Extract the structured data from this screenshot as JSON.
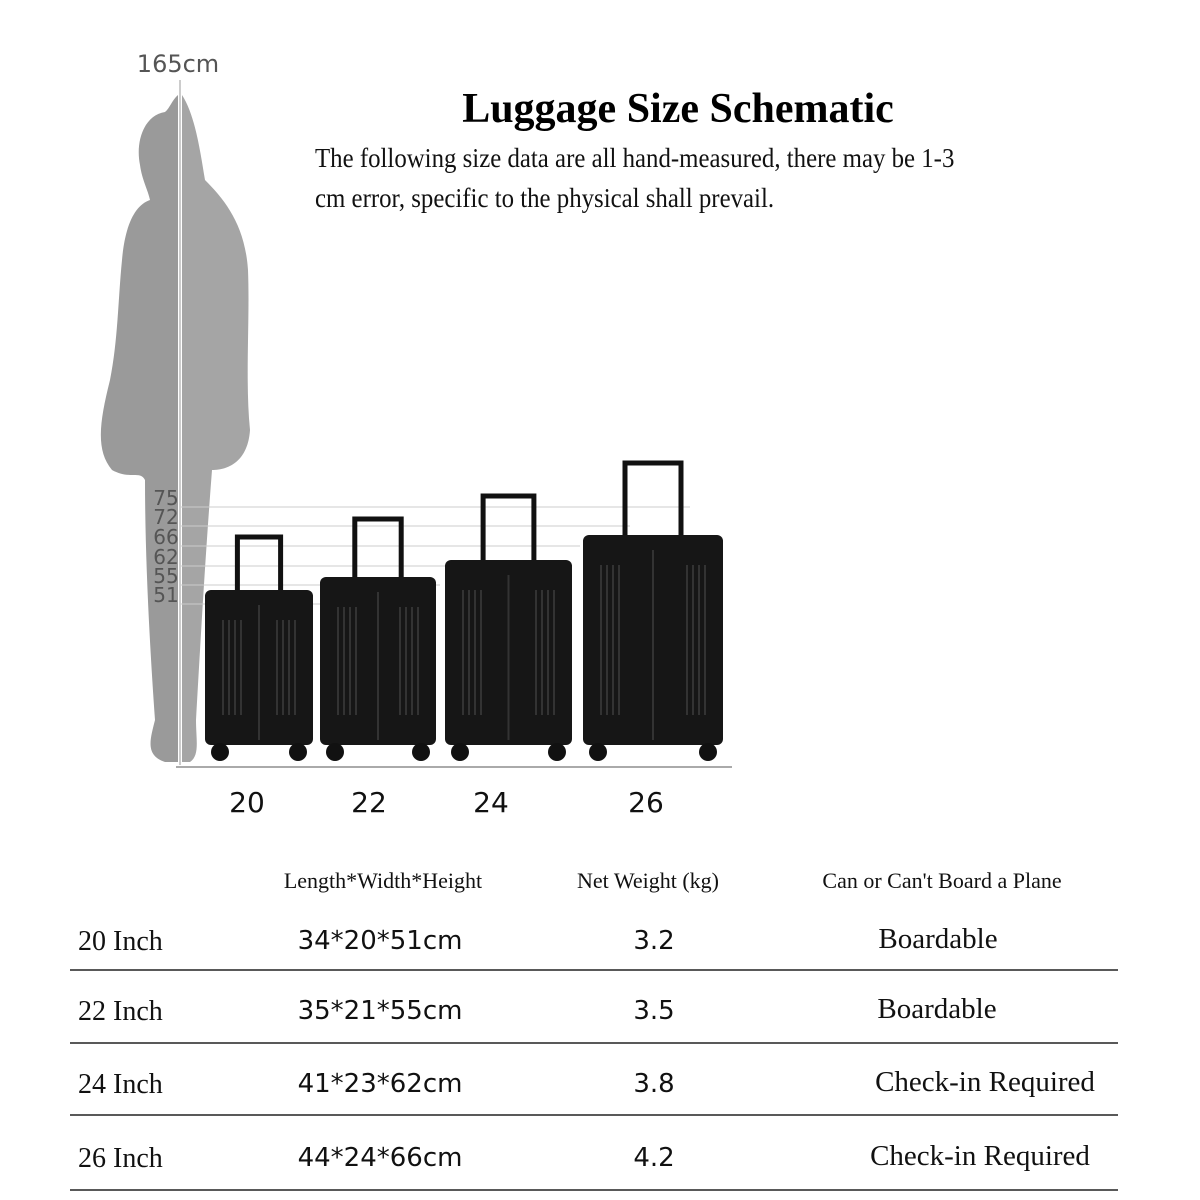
{
  "header": {
    "title": "Luggage Size Schematic",
    "note": "The following size data are all hand-measured, there may be 1-3 cm error, specific to the physical shall prevail."
  },
  "figure": {
    "height_label": "165cm",
    "ruler_labels": [
      "75",
      "72",
      "66",
      "62",
      "55",
      "51"
    ],
    "suitcase_labels": [
      "20",
      "22",
      "24",
      "26"
    ]
  },
  "table": {
    "columns": [
      "Length*Width*Height",
      "Net Weight (kg)",
      "Can or Can't Board a Plane"
    ],
    "rows": [
      [
        "20 Inch",
        "34*20*51cm",
        "3.2",
        "Boardable"
      ],
      [
        "22 Inch",
        "35*21*55cm",
        "3.5",
        "Boardable"
      ],
      [
        "24 Inch",
        "41*23*62cm",
        "3.8",
        "Check-in Required"
      ],
      [
        "26 Inch",
        "44*24*66cm",
        "4.2",
        "Check-in Required"
      ]
    ]
  }
}
